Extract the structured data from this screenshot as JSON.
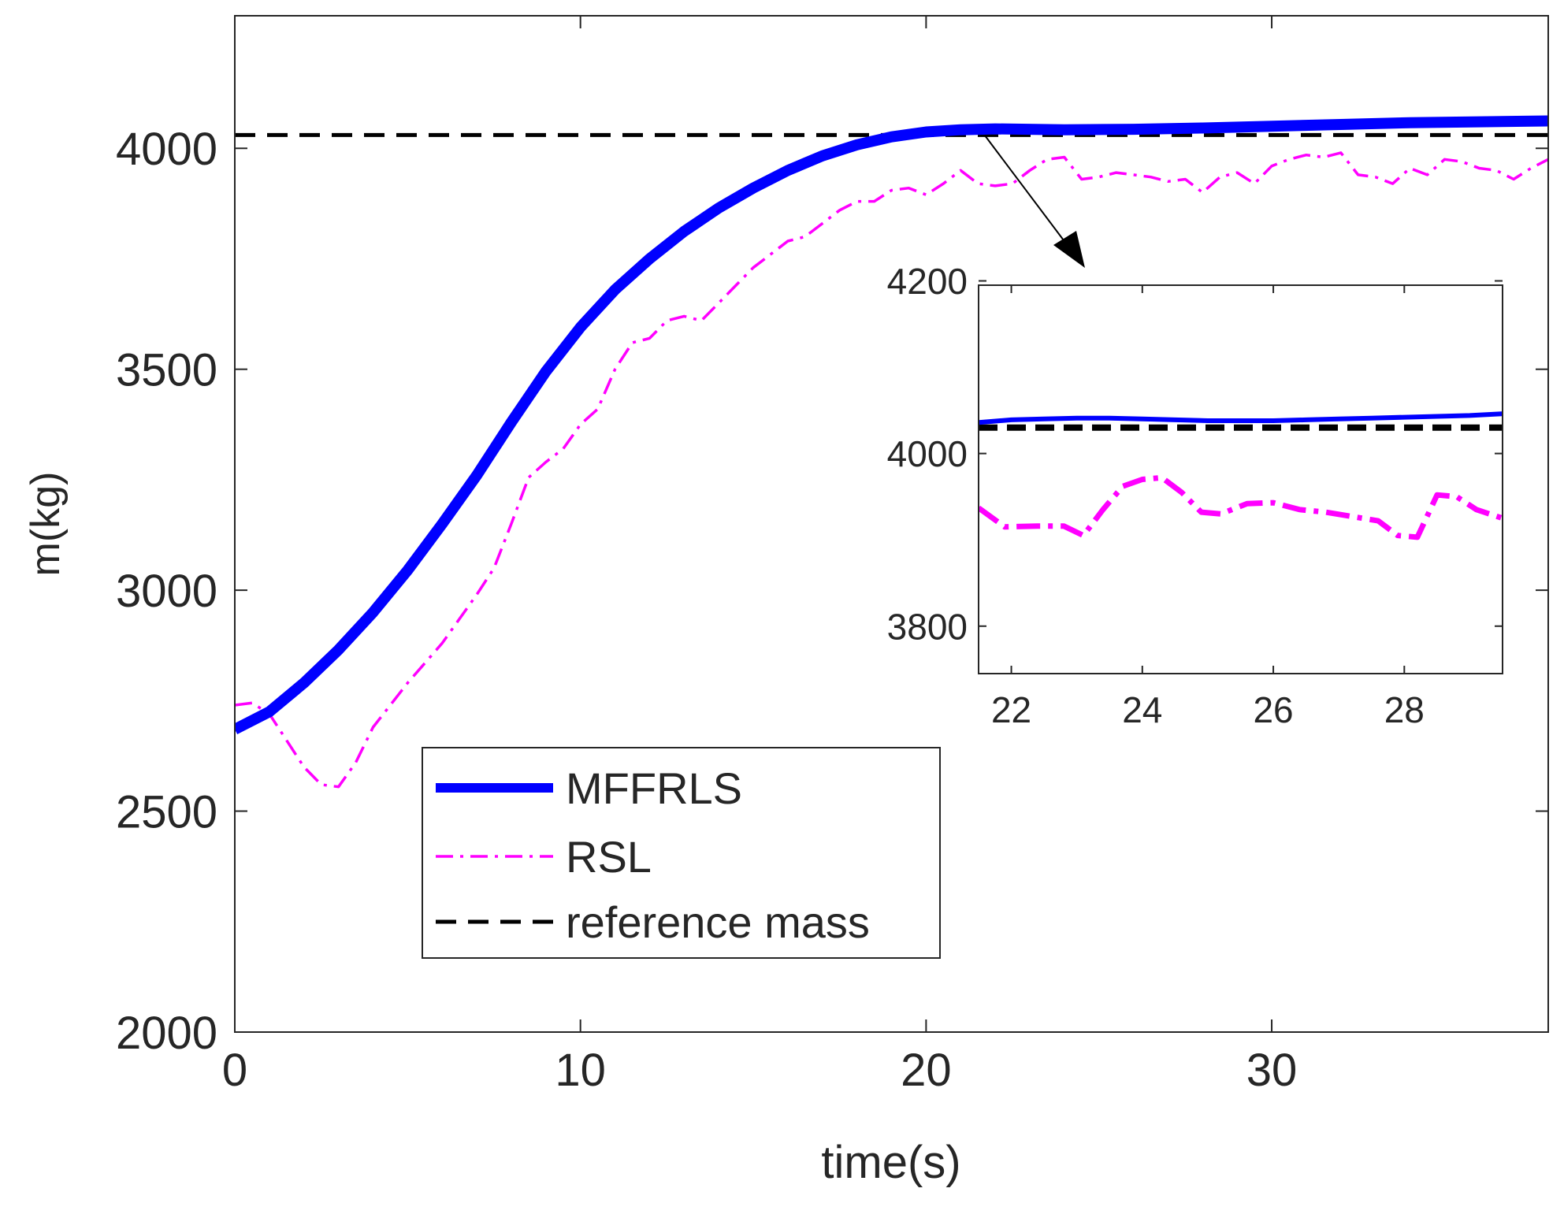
{
  "chart_data": [
    {
      "id": "main",
      "type": "line",
      "title": "",
      "xlabel": "time(s)",
      "ylabel": "m(kg)",
      "xlim": [
        0,
        38
      ],
      "ylim": [
        2000,
        4300
      ],
      "xticks": [
        0,
        10,
        20,
        30
      ],
      "yticks": [
        2000,
        2500,
        3000,
        3500,
        4000
      ],
      "xtick_labels": [
        "0",
        "10",
        "20",
        "30"
      ],
      "ytick_labels": [
        "2000",
        "2500",
        "3000",
        "3500",
        "4000"
      ],
      "grid": false,
      "legend_position": "bottom-left",
      "series": [
        {
          "name": "MFFRLS",
          "color": "#0000ff",
          "style": "solid",
          "x": [
            0,
            1,
            2,
            3,
            4,
            5,
            6,
            7,
            8,
            9,
            10,
            11,
            12,
            13,
            14,
            15,
            16,
            17,
            18,
            19,
            20,
            21,
            22,
            24,
            26,
            28,
            30,
            32,
            34,
            36,
            38
          ],
          "y": [
            2685,
            2725,
            2790,
            2865,
            2950,
            3045,
            3150,
            3260,
            3380,
            3495,
            3595,
            3680,
            3750,
            3812,
            3865,
            3910,
            3950,
            3983,
            4008,
            4026,
            4037,
            4042,
            4044,
            4042,
            4043,
            4046,
            4050,
            4054,
            4058,
            4060,
            4062
          ]
        },
        {
          "name": "RSL",
          "color": "#ff00ff",
          "style": "dashdot",
          "x": [
            0,
            0.5,
            1,
            1.5,
            2,
            2.5,
            3,
            3.5,
            4,
            4.5,
            5,
            6,
            7,
            7.5,
            8,
            8.5,
            9,
            9.5,
            10,
            10.5,
            11,
            11.5,
            12,
            12.5,
            13,
            13.5,
            14,
            14.5,
            15,
            15.5,
            16,
            16.5,
            17,
            17.5,
            18,
            18.5,
            19,
            19.5,
            20,
            20.5,
            21,
            21.5,
            22,
            22.5,
            23,
            23.5,
            24,
            24.5,
            25,
            25.5,
            26,
            26.5,
            27,
            27.5,
            28,
            28.5,
            29,
            29.5,
            30,
            30.5,
            31,
            31.5,
            32,
            32.5,
            33,
            33.5,
            34,
            34.5,
            35,
            35.5,
            36,
            36.5,
            37,
            37.5,
            38
          ],
          "y": [
            2740,
            2745,
            2720,
            2660,
            2600,
            2560,
            2555,
            2610,
            2690,
            2740,
            2790,
            2880,
            2990,
            3050,
            3150,
            3255,
            3290,
            3320,
            3375,
            3410,
            3500,
            3560,
            3570,
            3610,
            3620,
            3610,
            3650,
            3690,
            3730,
            3760,
            3790,
            3800,
            3830,
            3860,
            3880,
            3880,
            3905,
            3910,
            3895,
            3920,
            3950,
            3920,
            3915,
            3920,
            3950,
            3975,
            3980,
            3930,
            3935,
            3945,
            3940,
            3935,
            3925,
            3930,
            3900,
            3935,
            3945,
            3920,
            3960,
            3975,
            3985,
            3980,
            3990,
            3940,
            3935,
            3920,
            3955,
            3940,
            3975,
            3970,
            3955,
            3950,
            3930,
            3955,
            3975
          ]
        },
        {
          "name": "reference mass",
          "color": "#000000",
          "style": "dashed",
          "x": [
            0,
            38
          ],
          "y": [
            4030,
            4030
          ]
        }
      ]
    },
    {
      "id": "inset",
      "type": "line",
      "title": "",
      "xlabel": "",
      "ylabel": "",
      "xlim": [
        21.5,
        29.5
      ],
      "ylim": [
        3745,
        4195
      ],
      "xticks": [
        22,
        24,
        26,
        28
      ],
      "yticks": [
        3800,
        4000,
        4200
      ],
      "xtick_labels": [
        "22",
        "24",
        "26",
        "28"
      ],
      "ytick_labels": [
        "3800",
        "4000",
        "4200"
      ],
      "grid": false,
      "series": [
        {
          "name": "MFFRLS",
          "color": "#0000ff",
          "style": "solid",
          "x": [
            21.5,
            22,
            22.5,
            23,
            23.5,
            24,
            24.5,
            25,
            25.5,
            26,
            26.5,
            27,
            27.5,
            28,
            28.5,
            29,
            29.5
          ],
          "y": [
            4036,
            4039,
            4040,
            4041,
            4041,
            4040,
            4039,
            4038,
            4038,
            4038,
            4039,
            4040,
            4041,
            4042,
            4043,
            4044,
            4046
          ]
        },
        {
          "name": "RSL",
          "color": "#ff00ff",
          "style": "dashdot",
          "x": [
            21.5,
            21.9,
            22.4,
            22.8,
            23.1,
            23.4,
            23.7,
            24.0,
            24.3,
            24.6,
            24.9,
            25.2,
            25.6,
            26.0,
            26.4,
            26.8,
            27.2,
            27.6,
            27.9,
            28.2,
            28.5,
            28.8,
            29.1,
            29.5
          ],
          "y": [
            3937,
            3915,
            3916,
            3916,
            3905,
            3935,
            3962,
            3970,
            3972,
            3955,
            3932,
            3930,
            3942,
            3943,
            3935,
            3932,
            3927,
            3922,
            3905,
            3903,
            3952,
            3950,
            3935,
            3925
          ]
        },
        {
          "name": "reference mass",
          "color": "#000000",
          "style": "dashed",
          "x": [
            21.5,
            29.5
          ],
          "y": [
            4030,
            4030
          ]
        }
      ]
    }
  ]
}
